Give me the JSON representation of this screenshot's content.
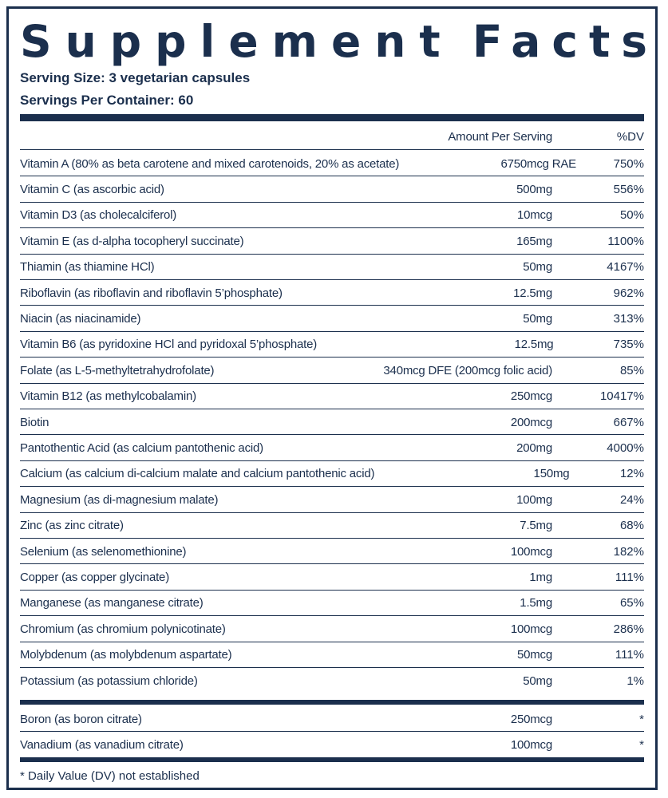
{
  "title": {
    "word1": "Supplement",
    "word2": "Facts"
  },
  "serving_size": "Serving Size: 3 vegetarian capsules",
  "servings_per_container": "Servings Per Container: 60",
  "header": {
    "amount": "Amount Per Serving",
    "dv": "%DV"
  },
  "rows": [
    {
      "name": "Vitamin A (80% as beta carotene and mixed carotenoids, 20% as acetate)",
      "amount": "6750mcg RAE",
      "dv": "750%"
    },
    {
      "name": "Vitamin C (as ascorbic acid)",
      "amount": "500mg",
      "dv": "556%"
    },
    {
      "name": "Vitamin D3 (as cholecalciferol)",
      "amount": "10mcg",
      "dv": "50%"
    },
    {
      "name": "Vitamin E (as d-alpha tocopheryl succinate)",
      "amount": "165mg",
      "dv": "1100%"
    },
    {
      "name": "Thiamin (as thiamine HCl)",
      "amount": "50mg",
      "dv": "4167%"
    },
    {
      "name": "Riboflavin (as riboflavin and riboflavin 5’phosphate)",
      "amount": "12.5mg",
      "dv": "962%"
    },
    {
      "name": "Niacin (as niacinamide)",
      "amount": "50mg",
      "dv": "313%"
    },
    {
      "name": "Vitamin B6 (as pyridoxine HCl and pyridoxal 5’phosphate)",
      "amount": "12.5mg",
      "dv": "735%"
    },
    {
      "name": "Folate (as L-5-methyltetrahydrofolate)",
      "amount": "340mcg DFE (200mcg folic acid)",
      "dv": "85%"
    },
    {
      "name": "Vitamin B12 (as methylcobalamin)",
      "amount": "250mcg",
      "dv": "10417%"
    },
    {
      "name": "Biotin",
      "amount": "200mcg",
      "dv": "667%"
    },
    {
      "name": "Pantothentic Acid (as calcium pantothenic acid)",
      "amount": "200mg",
      "dv": "4000%"
    },
    {
      "name": "Calcium (as calcium di-calcium malate and calcium pantothenic acid)",
      "amount": "150mg",
      "dv": "12%"
    },
    {
      "name": "Magnesium (as di-magnesium malate)",
      "amount": "100mg",
      "dv": "24%"
    },
    {
      "name": "Zinc (as zinc citrate)",
      "amount": "7.5mg",
      "dv": "68%"
    },
    {
      "name": "Selenium (as selenomethionine)",
      "amount": "100mcg",
      "dv": "182%"
    },
    {
      "name": "Copper (as copper glycinate)",
      "amount": "1mg",
      "dv": "111%"
    },
    {
      "name": "Manganese (as manganese citrate)",
      "amount": "1.5mg",
      "dv": "65%"
    },
    {
      "name": "Chromium (as chromium polynicotinate)",
      "amount": "100mcg",
      "dv": "286%"
    },
    {
      "name": "Molybdenum (as molybdenum aspartate)",
      "amount": "50mcg",
      "dv": "111%"
    },
    {
      "name": "Potassium (as potassium chloride)",
      "amount": "50mg",
      "dv": "1%"
    }
  ],
  "extra_rows": [
    {
      "name": "Boron (as boron citrate)",
      "amount": "250mcg",
      "dv": "*"
    },
    {
      "name": "Vanadium (as vanadium citrate)",
      "amount": "100mcg",
      "dv": "*"
    }
  ],
  "footnote": "* Daily Value (DV) not established"
}
